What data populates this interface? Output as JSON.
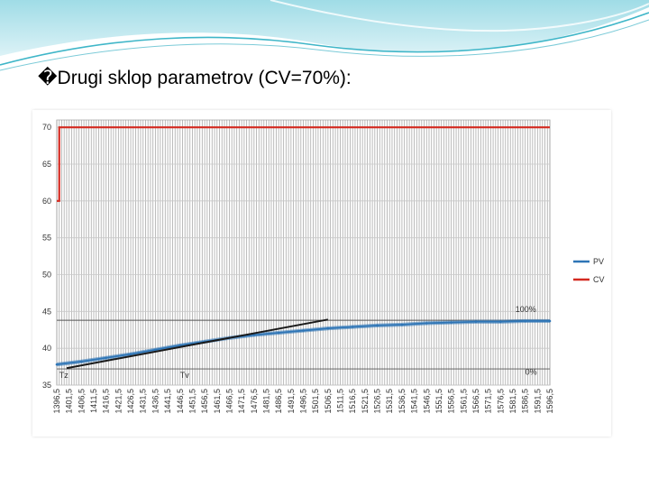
{
  "slide": {
    "title": "Drugi sklop parametrov (CV=70%):",
    "bullet_glyph": "�"
  },
  "colors": {
    "background": "#ffffff",
    "decor_teal": "#3fb6c8",
    "grid": "#9a9a9a",
    "pv": "#2e75b6",
    "cv": "#d42a20",
    "tangent": "#1a1a1a"
  },
  "chart_data": {
    "type": "line",
    "title": "",
    "xlabel": "",
    "ylabel": "",
    "ylim": [
      35,
      71
    ],
    "yticks": [
      35,
      40,
      45,
      50,
      55,
      60,
      65,
      70
    ],
    "x_tick_labels": [
      "1396,5",
      "1401,5",
      "1406,5",
      "1411,5",
      "1416,5",
      "1421,5",
      "1426,5",
      "1431,5",
      "1436,5",
      "1441,5",
      "1446,5",
      "1451,5",
      "1456,5",
      "1461,5",
      "1466,5",
      "1471,5",
      "1476,5",
      "1481,5",
      "1486,5",
      "1491,5",
      "1496,5",
      "1501,5",
      "1506,5",
      "1511,5",
      "1516,5",
      "1521,5",
      "1526,5",
      "1531,5",
      "1536,5",
      "1541,5",
      "1546,5",
      "1551,5",
      "1556,5",
      "1561,5",
      "1566,5",
      "1571,5",
      "1576,5",
      "1581,5",
      "1586,5",
      "1591,5",
      "1596,5"
    ],
    "xlim": [
      1396.5,
      1596.5
    ],
    "grid": true,
    "legend": "right",
    "series": [
      {
        "name": "PV",
        "color": "#2e75b6",
        "x": [
          1396.5,
          1406.5,
          1416.5,
          1426.5,
          1436.5,
          1446.5,
          1456.5,
          1466.5,
          1476.5,
          1486.5,
          1496.5,
          1506.5,
          1516.5,
          1526.5,
          1536.5,
          1546.5,
          1556.5,
          1566.5,
          1576.5,
          1586.5,
          1596.5
        ],
        "y": [
          37.8,
          38.2,
          38.7,
          39.2,
          39.8,
          40.4,
          40.9,
          41.4,
          41.8,
          42.1,
          42.4,
          42.7,
          42.9,
          43.1,
          43.2,
          43.4,
          43.5,
          43.6,
          43.6,
          43.7,
          43.7
        ]
      },
      {
        "name": "CV",
        "color": "#d42a20",
        "x": [
          1396.5,
          1397.5,
          1397.5,
          1596.5
        ],
        "y": [
          60,
          60,
          70,
          70
        ]
      }
    ],
    "reference_lines": [
      {
        "type": "horizontal",
        "y": 43.8,
        "label": "100%"
      },
      {
        "type": "horizontal",
        "y": 37.2,
        "label": "0%"
      }
    ],
    "tangent": {
      "x": [
        1400.5,
        1506.5
      ],
      "y": [
        37.3,
        43.9
      ]
    },
    "annotations": [
      {
        "text": "Tz",
        "x": 1397.5,
        "y": 36.0
      },
      {
        "text": "Tv",
        "x": 1446.5,
        "y": 36.0
      },
      {
        "text": "100%",
        "x": 1582.5,
        "y": 44.9
      },
      {
        "text": "0%",
        "x": 1586.5,
        "y": 36.4
      }
    ]
  }
}
